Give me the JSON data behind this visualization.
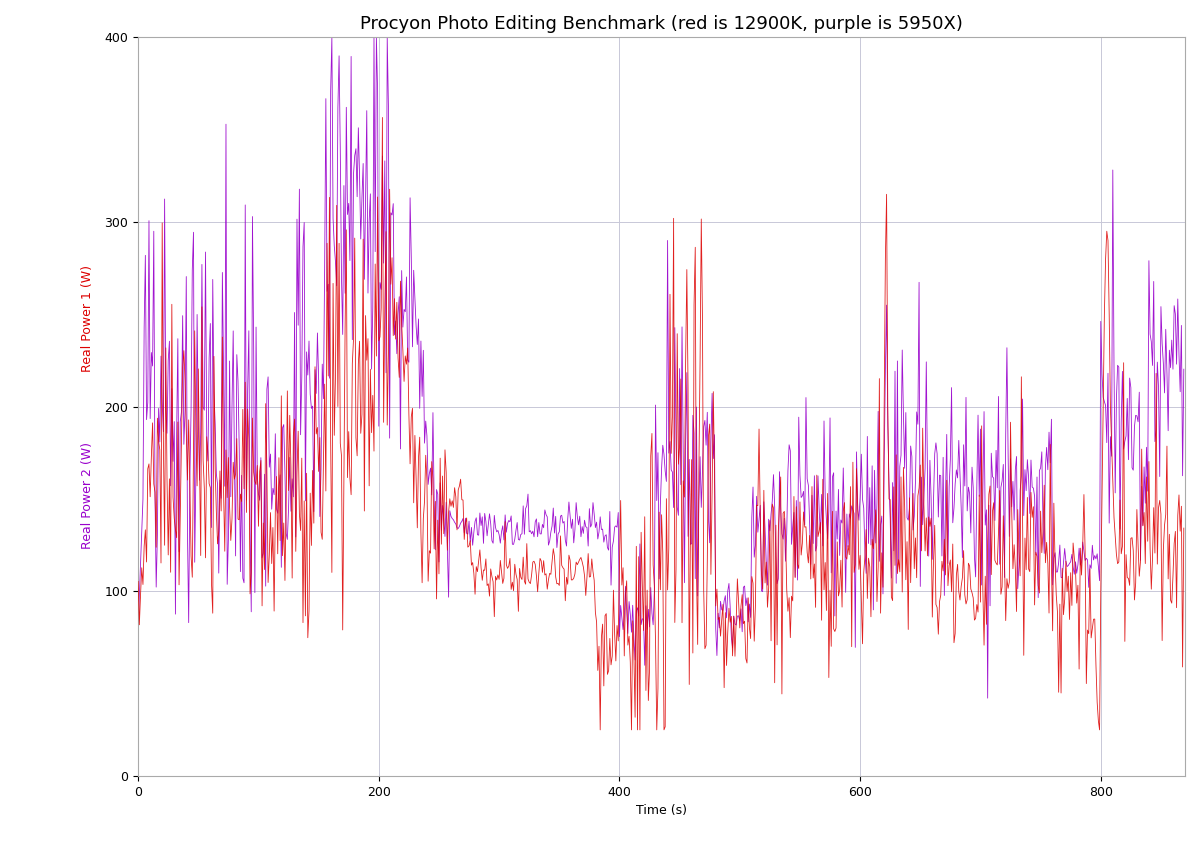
{
  "title": "Procyon Photo Editing Benchmark (red is 12900K, purple is 5950X)",
  "xlabel": "Time (s)",
  "ylabel1": "Real Power 1 (W)",
  "ylabel2": "Real Power 2 (W)",
  "color_red": "#dd0000",
  "color_purple": "#9900cc",
  "bg_color": "#ffffff",
  "grid_color": "#c8c8d8",
  "xlim": [
    0,
    870
  ],
  "ylim": [
    0,
    400
  ],
  "yticks": [
    0,
    100,
    200,
    300,
    400
  ],
  "xticks": [
    0,
    200,
    400,
    600,
    800
  ],
  "title_fontsize": 13,
  "axis_label_fontsize": 9,
  "tick_fontsize": 9
}
